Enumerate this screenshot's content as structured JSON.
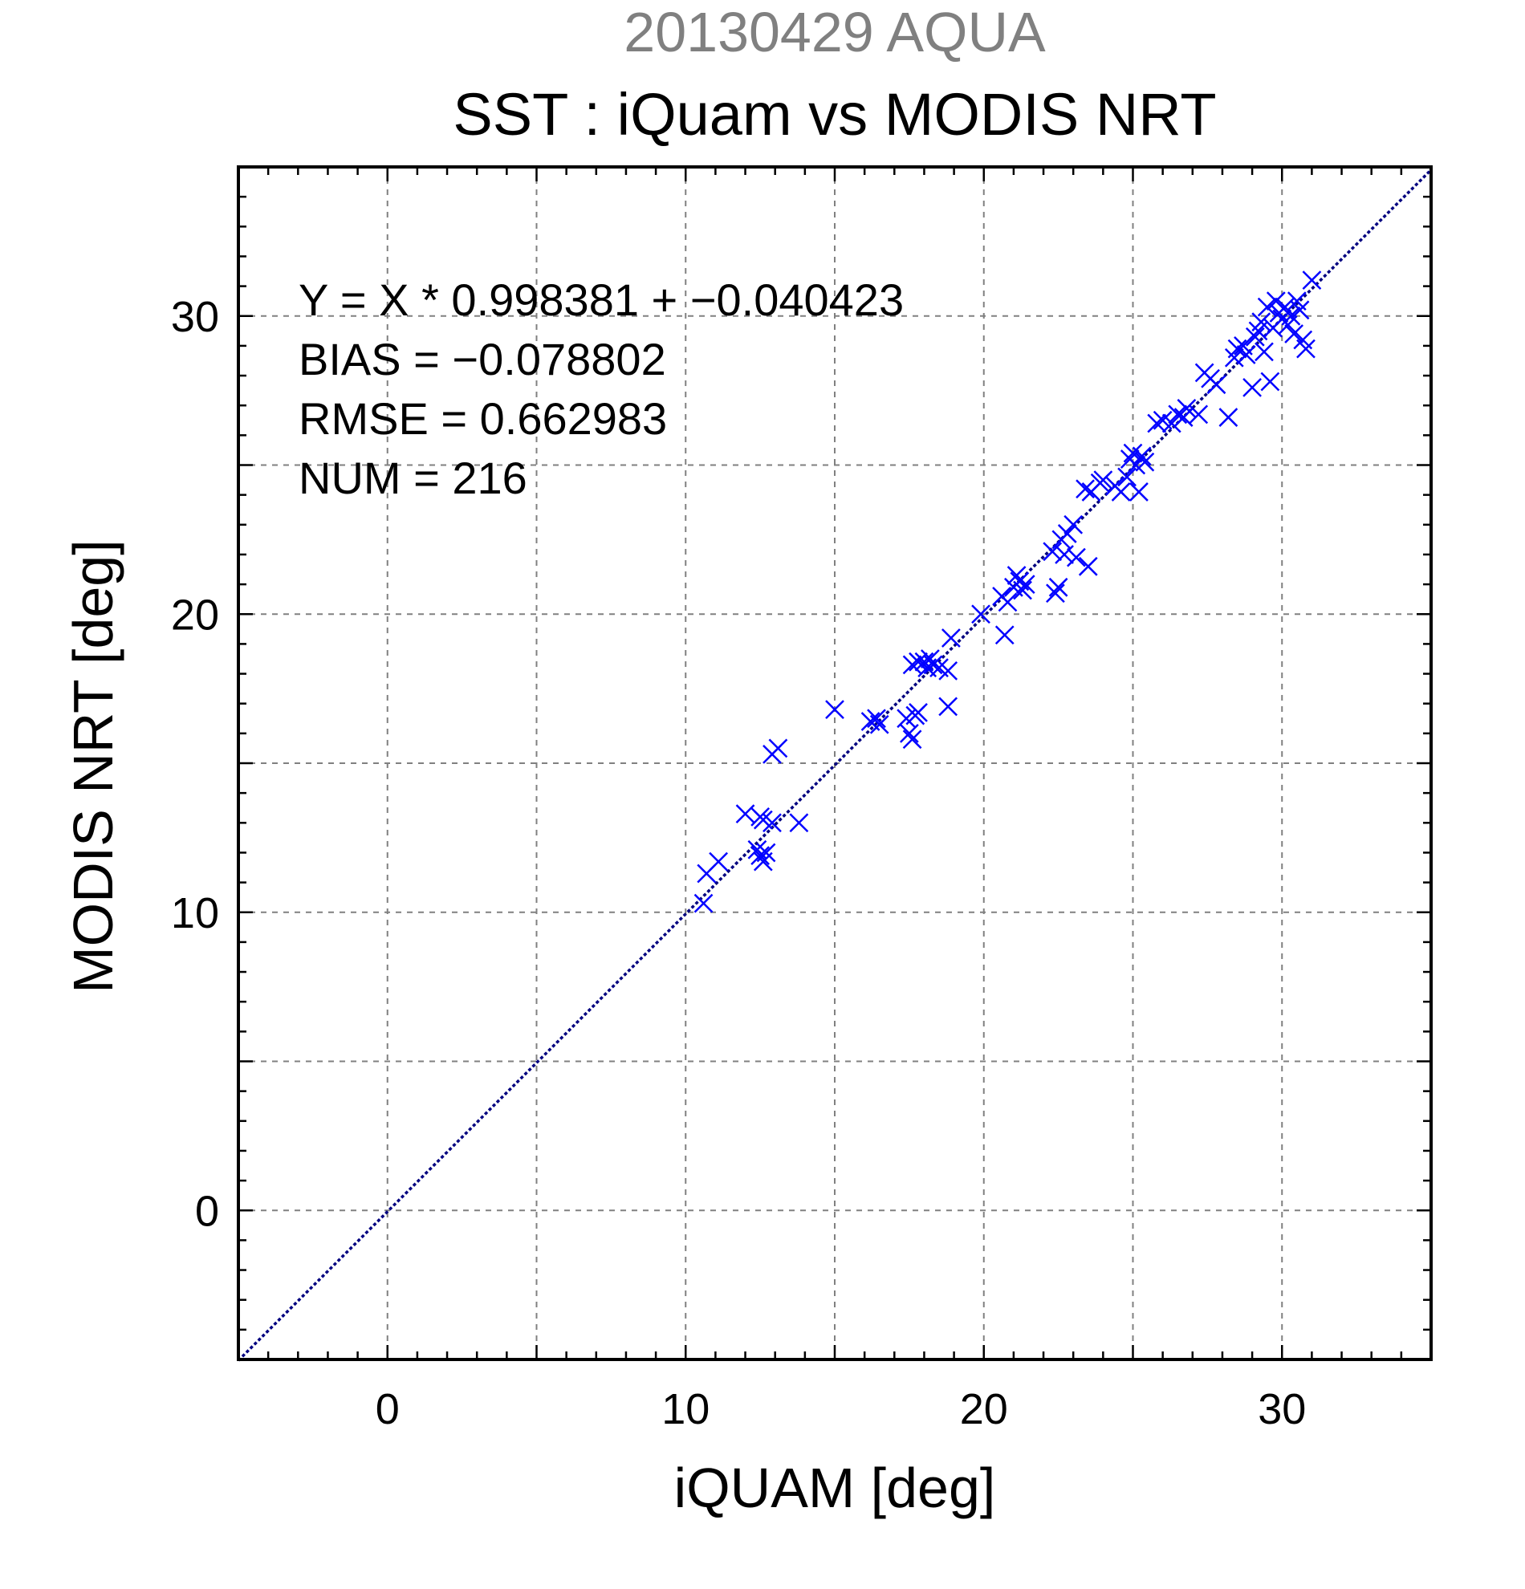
{
  "chart_data": {
    "type": "scatter",
    "date_title": "20130429 AQUA",
    "title": "SST : iQuam vs MODIS NRT",
    "xlabel": "iQUAM [deg]",
    "ylabel": "MODIS NRT [deg]",
    "xlim": [
      -5,
      35
    ],
    "ylim": [
      -5,
      35
    ],
    "x_major_ticks": [
      0,
      10,
      20,
      30
    ],
    "x_tick_labels": [
      "0",
      "10",
      "20",
      "30"
    ],
    "y_major_ticks": [
      0,
      10,
      20,
      30
    ],
    "y_tick_labels": [
      "0",
      "10",
      "20",
      "30"
    ],
    "grid_step": 5,
    "minor_tick_step": 1,
    "grid": true,
    "marker": "x",
    "stats": {
      "fit": "Y = X * 0.998381 + −0.040423",
      "bias": "BIAS = −0.078802",
      "rmse": "RMSE = 0.662983",
      "num": "NUM = 216"
    },
    "fit_line": {
      "slope": 0.998381,
      "intercept": -0.040423
    },
    "points": [
      [
        10.6,
        10.3
      ],
      [
        10.7,
        11.3
      ],
      [
        11.1,
        11.7
      ],
      [
        12.0,
        13.3
      ],
      [
        12.5,
        13.2
      ],
      [
        12.6,
        13.1
      ],
      [
        12.9,
        13.0
      ],
      [
        12.4,
        12.1
      ],
      [
        12.5,
        11.9
      ],
      [
        12.6,
        11.7
      ],
      [
        12.7,
        12.0
      ],
      [
        12.9,
        15.3
      ],
      [
        13.1,
        15.5
      ],
      [
        13.8,
        13.0
      ],
      [
        15.0,
        16.8
      ],
      [
        16.2,
        16.4
      ],
      [
        16.4,
        16.5
      ],
      [
        16.5,
        16.3
      ],
      [
        17.4,
        16.5
      ],
      [
        17.5,
        16.0
      ],
      [
        17.6,
        15.8
      ],
      [
        17.7,
        16.6
      ],
      [
        17.8,
        16.7
      ],
      [
        17.6,
        18.3
      ],
      [
        17.8,
        18.4
      ],
      [
        18.0,
        18.4
      ],
      [
        18.1,
        18.2
      ],
      [
        18.2,
        18.5
      ],
      [
        18.3,
        18.3
      ],
      [
        18.5,
        18.2
      ],
      [
        18.8,
        18.1
      ],
      [
        18.8,
        16.9
      ],
      [
        18.9,
        19.2
      ],
      [
        19.9,
        20.0
      ],
      [
        20.6,
        20.6
      ],
      [
        20.7,
        19.3
      ],
      [
        20.8,
        20.4
      ],
      [
        21.0,
        20.9
      ],
      [
        21.1,
        21.3
      ],
      [
        21.2,
        21.1
      ],
      [
        21.3,
        20.8
      ],
      [
        21.4,
        21.0
      ],
      [
        22.3,
        22.1
      ],
      [
        22.4,
        20.7
      ],
      [
        22.5,
        20.9
      ],
      [
        22.6,
        22.5
      ],
      [
        22.7,
        22.0
      ],
      [
        22.8,
        22.7
      ],
      [
        23.0,
        23.0
      ],
      [
        23.1,
        21.9
      ],
      [
        23.5,
        21.6
      ],
      [
        23.4,
        24.2
      ],
      [
        23.6,
        24.1
      ],
      [
        23.9,
        24.4
      ],
      [
        24.0,
        24.5
      ],
      [
        24.4,
        24.3
      ],
      [
        24.6,
        24.1
      ],
      [
        24.8,
        24.6
      ],
      [
        24.9,
        25.2
      ],
      [
        25.0,
        25.4
      ],
      [
        25.1,
        25.0
      ],
      [
        25.2,
        24.1
      ],
      [
        25.3,
        25.3
      ],
      [
        25.4,
        25.1
      ],
      [
        25.8,
        26.4
      ],
      [
        26.0,
        26.5
      ],
      [
        26.3,
        26.4
      ],
      [
        26.5,
        26.7
      ],
      [
        26.7,
        26.6
      ],
      [
        26.8,
        26.9
      ],
      [
        27.2,
        26.7
      ],
      [
        27.4,
        28.1
      ],
      [
        27.6,
        27.9
      ],
      [
        27.8,
        27.7
      ],
      [
        28.2,
        26.6
      ],
      [
        28.4,
        28.6
      ],
      [
        28.5,
        28.9
      ],
      [
        28.7,
        29.0
      ],
      [
        28.8,
        28.7
      ],
      [
        29.0,
        27.6
      ],
      [
        29.1,
        29.3
      ],
      [
        29.2,
        29.5
      ],
      [
        29.3,
        29.8
      ],
      [
        29.4,
        28.8
      ],
      [
        29.5,
        30.3
      ],
      [
        29.6,
        27.8
      ],
      [
        29.7,
        29.6
      ],
      [
        29.8,
        30.5
      ],
      [
        29.9,
        30.1
      ],
      [
        30.0,
        29.9
      ],
      [
        30.1,
        30.3
      ],
      [
        30.2,
        29.7
      ],
      [
        30.3,
        30.0
      ],
      [
        30.4,
        29.4
      ],
      [
        30.5,
        30.5
      ],
      [
        30.6,
        30.2
      ],
      [
        30.7,
        29.2
      ],
      [
        30.8,
        28.9
      ],
      [
        31.0,
        31.2
      ]
    ]
  }
}
